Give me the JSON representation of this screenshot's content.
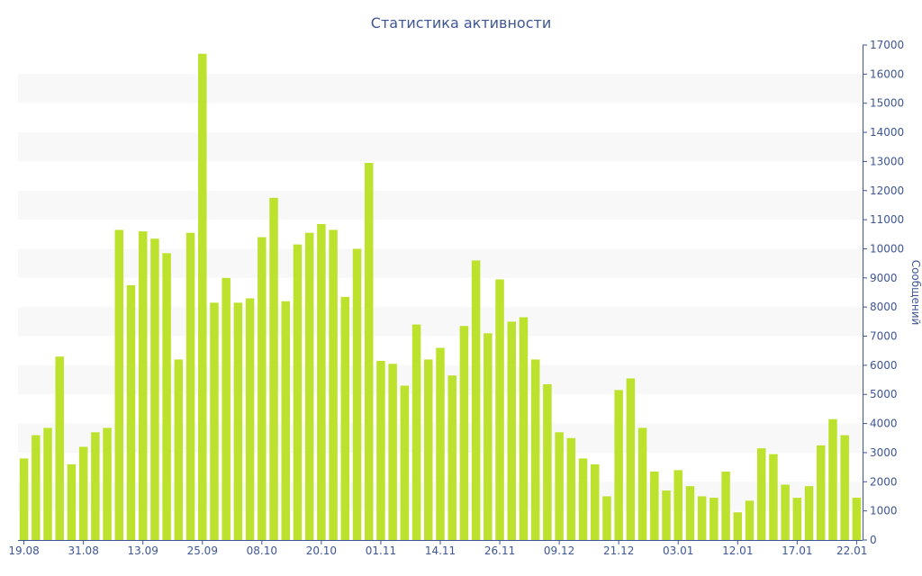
{
  "chart_data": {
    "type": "bar",
    "title": "Статистика активности",
    "xlabel": "",
    "ylabel": "Сообщений",
    "y_axis_side": "right",
    "ylim": [
      0,
      17000
    ],
    "yticks": [
      0,
      1000,
      2000,
      3000,
      4000,
      5000,
      6000,
      7000,
      8000,
      9000,
      10000,
      11000,
      12000,
      13000,
      14000,
      15000,
      16000,
      17000
    ],
    "x_tick_labels": [
      {
        "label": "19.08",
        "index": 0
      },
      {
        "label": "31.08",
        "index": 5
      },
      {
        "label": "13.09",
        "index": 10
      },
      {
        "label": "25.09",
        "index": 15
      },
      {
        "label": "08.10",
        "index": 20
      },
      {
        "label": "20.10",
        "index": 25
      },
      {
        "label": "01.11",
        "index": 30
      },
      {
        "label": "14.11",
        "index": 35
      },
      {
        "label": "26.11",
        "index": 40
      },
      {
        "label": "09.12",
        "index": 45
      },
      {
        "label": "21.12",
        "index": 50
      },
      {
        "label": "03.01",
        "index": 55
      },
      {
        "label": "12.01",
        "index": 60
      },
      {
        "label": "17.01",
        "index": 65
      },
      {
        "label": "22.01",
        "index": 70
      }
    ],
    "bar_color": "#bde22e",
    "grid_band_color": "#f8f8f8",
    "text_color": "#3e5694",
    "values": [
      2800,
      3600,
      3850,
      6300,
      2600,
      3200,
      3700,
      3850,
      10650,
      8750,
      10600,
      10350,
      9850,
      6200,
      10550,
      16700,
      8150,
      9000,
      8150,
      8300,
      10400,
      11750,
      8200,
      10150,
      10550,
      10850,
      10650,
      8350,
      10000,
      12950,
      6150,
      6050,
      5300,
      7400,
      6200,
      6600,
      5650,
      7350,
      9600,
      7100,
      8950,
      7500,
      7650,
      6200,
      5350,
      3700,
      3500,
      2800,
      2600,
      1500,
      5150,
      5550,
      3850,
      2350,
      1700,
      2400,
      1850,
      1500,
      1450,
      2350,
      950,
      1350,
      3150,
      2950,
      1900,
      1450,
      1850,
      3250,
      4150,
      3600,
      1450
    ]
  }
}
